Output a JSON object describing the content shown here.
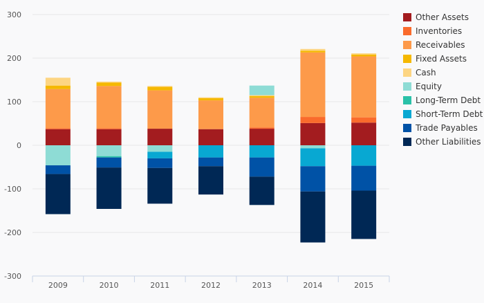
{
  "chart_data": {
    "type": "bar",
    "stacked": true,
    "categories": [
      "2009",
      "2010",
      "2011",
      "2012",
      "2013",
      "2014",
      "2015"
    ],
    "ylim": [
      -300,
      300
    ],
    "yticks": [
      -300,
      -200,
      -100,
      0,
      100,
      200,
      300
    ],
    "ytick_labels": [
      "-300",
      "-200",
      "-100",
      "0",
      "100",
      "200",
      "300"
    ],
    "grid": true,
    "legend_position": "right",
    "series": [
      {
        "name": "Other Assets",
        "color": "#a31c1f",
        "values": [
          37,
          37,
          38,
          37,
          38,
          51,
          52
        ]
      },
      {
        "name": "Inventories",
        "color": "#fa6b2c",
        "values": [
          2,
          2,
          0,
          0,
          3,
          14,
          12
        ]
      },
      {
        "name": "Receivables",
        "color": "#fd9a4a",
        "values": [
          90,
          97,
          88,
          66,
          68,
          148,
          140
        ]
      },
      {
        "name": "Fixed Assets",
        "color": "#f5b800",
        "values": [
          8,
          8,
          8,
          5,
          4,
          4,
          4
        ]
      },
      {
        "name": "Cash",
        "color": "#fdd582",
        "values": [
          18,
          2,
          2,
          2,
          2,
          4,
          3
        ]
      },
      {
        "name": "Equity",
        "color": "#8edcd5",
        "values": [
          -46,
          -25,
          -15,
          0,
          22,
          -7,
          0
        ]
      },
      {
        "name": "Long-Term Debt",
        "color": "#2ac1a8",
        "values": [
          0,
          -3,
          0,
          0,
          0,
          0,
          0
        ]
      },
      {
        "name": "Short-Term Debt",
        "color": "#08a8d2",
        "values": [
          0,
          0,
          -15,
          -28,
          -28,
          -41,
          -47
        ]
      },
      {
        "name": "Trade Payables",
        "color": "#0052a6",
        "values": [
          -20,
          -23,
          -22,
          -20,
          -44,
          -58,
          -57
        ]
      },
      {
        "name": "Other Liabilities",
        "color": "#002855",
        "values": [
          -92,
          -95,
          -82,
          -65,
          -65,
          -117,
          -111
        ]
      }
    ]
  }
}
